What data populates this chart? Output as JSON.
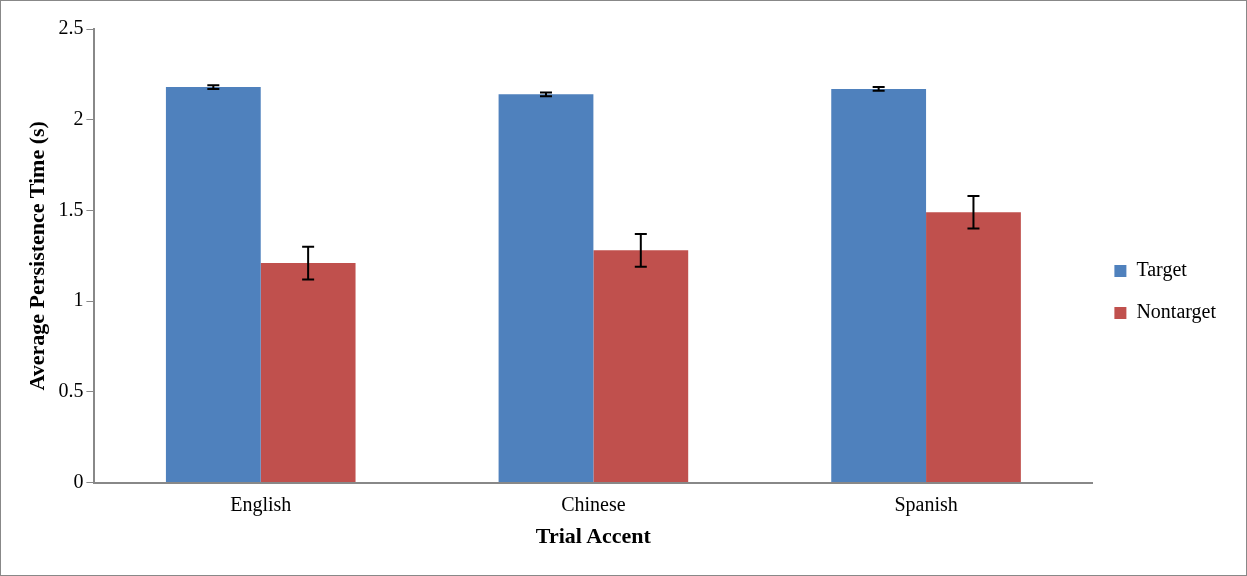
{
  "chart_data": {
    "type": "bar",
    "xlabel": "Trial Accent",
    "ylabel": "Average Persistence Time (s)",
    "categories": [
      "English",
      "Chinese",
      "Spanish"
    ],
    "series": [
      {
        "name": "Target",
        "color": "#4f81bd",
        "values": [
          2.18,
          2.14,
          2.17
        ],
        "errors": [
          0.01,
          0.01,
          0.01
        ]
      },
      {
        "name": "Nontarget",
        "color": "#c0504d",
        "values": [
          1.21,
          1.28,
          1.49
        ],
        "errors": [
          0.09,
          0.09,
          0.09
        ]
      }
    ],
    "ylim": [
      0,
      2.5
    ],
    "yticks": [
      0,
      0.5,
      1,
      1.5,
      2,
      2.5
    ],
    "grid": false,
    "legend": "right"
  }
}
